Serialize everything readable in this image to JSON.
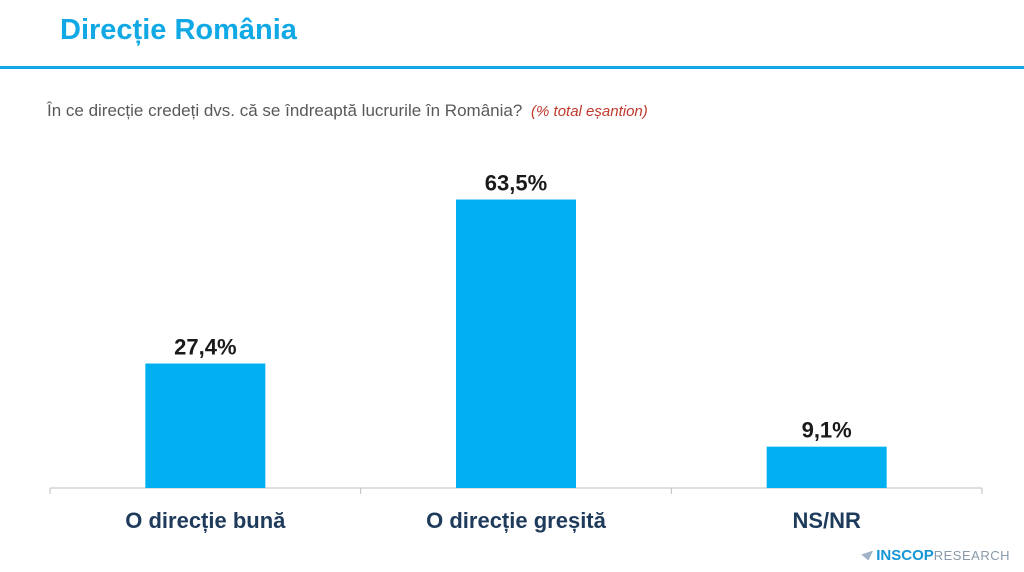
{
  "header": {
    "title": "Direcție România",
    "question": "În ce direcție credeți dvs. că se îndreaptă lucrurile în România?",
    "question_note": "(% total eșantion)"
  },
  "chart_data": {
    "type": "bar",
    "categories": [
      "O direcție bună",
      "O direcție greșită",
      "NS/NR"
    ],
    "values": [
      27.4,
      63.5,
      9.1
    ],
    "value_labels": [
      "27,4%",
      "63,5%",
      "9,1%"
    ],
    "ylim": [
      0,
      70
    ],
    "grid": false,
    "legend": "none",
    "bar_color": "#00b0f0"
  },
  "logo": {
    "brand": "INSCOP",
    "sub": "RESEARCH"
  },
  "colors": {
    "accent": "#10a9e6",
    "note": "#c0392b",
    "category_text": "#1f3b5c"
  }
}
